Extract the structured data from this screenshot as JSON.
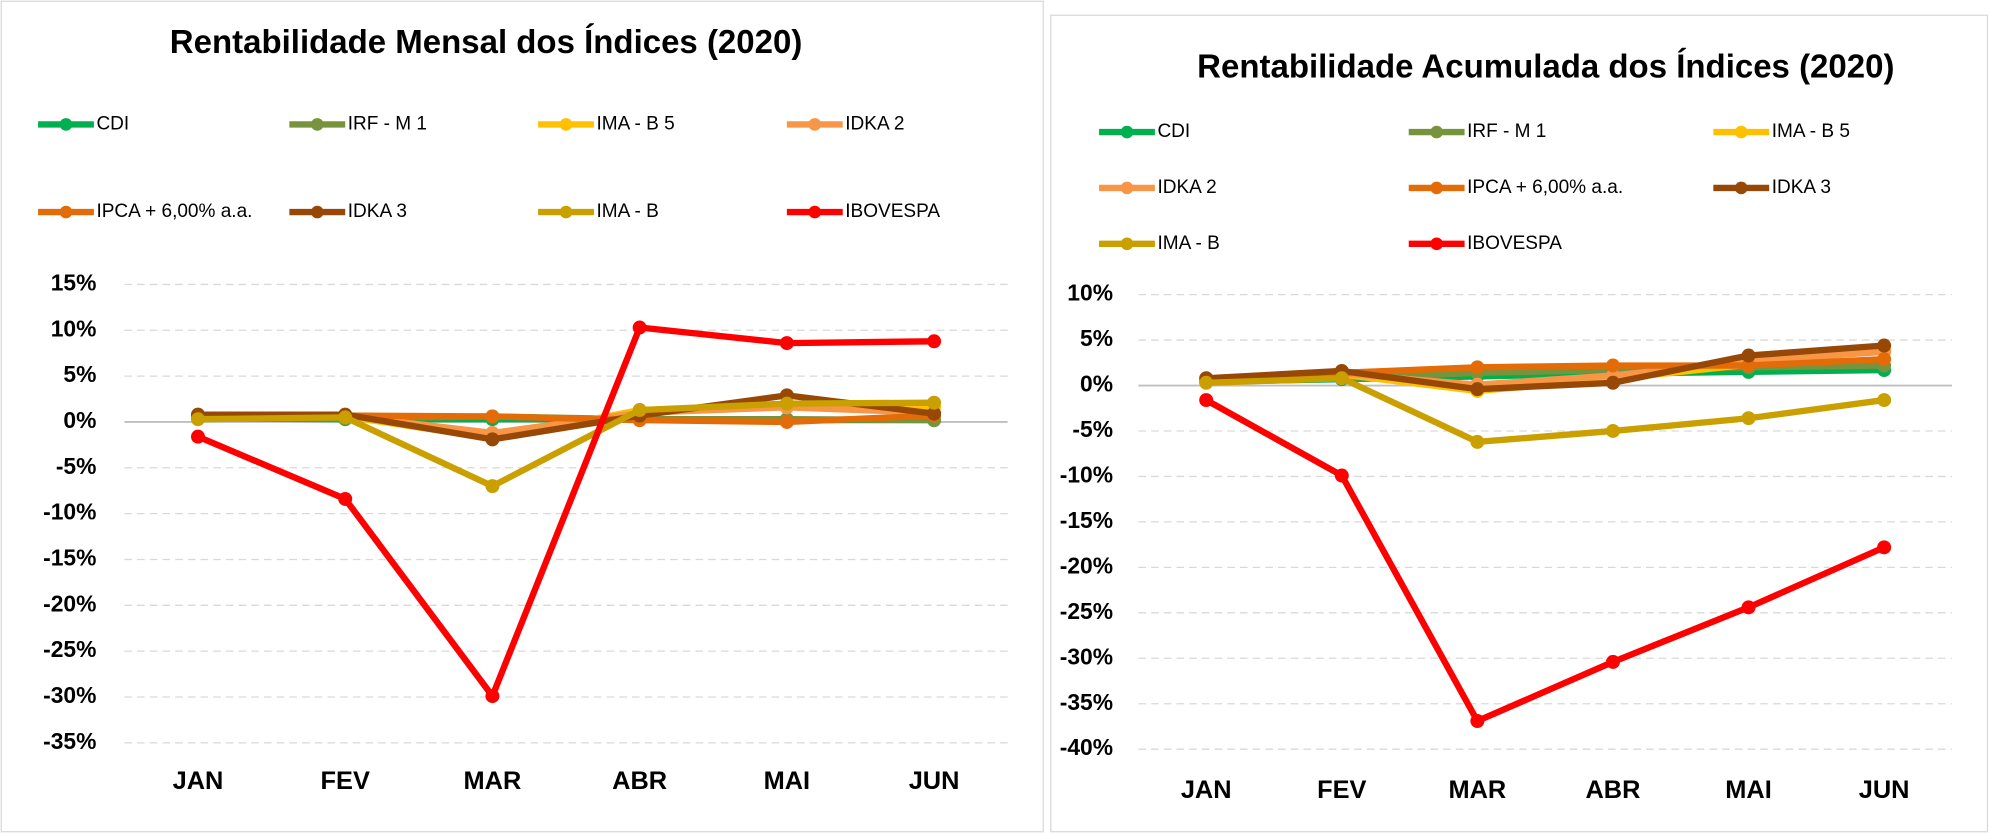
{
  "chart_data": [
    {
      "type": "line",
      "title": "Rentabilidade Mensal dos Índices (2020)",
      "categories": [
        "JAN",
        "FEV",
        "MAR",
        "ABR",
        "MAI",
        "JUN"
      ],
      "series": [
        {
          "name": "CDI",
          "color": "#00b050",
          "values": [
            0.4,
            0.3,
            0.3,
            0.3,
            0.2,
            0.2
          ]
        },
        {
          "name": "IRF - M 1",
          "color": "#77933c",
          "values": [
            0.4,
            0.4,
            0.6,
            0.3,
            0.3,
            0.2
          ]
        },
        {
          "name": "IMA - B 5",
          "color": "#ffc000",
          "values": [
            0.6,
            0.6,
            -1.8,
            1.3,
            1.6,
            1.6
          ]
        },
        {
          "name": "IDKA 2",
          "color": "#f79646",
          "values": [
            0.6,
            0.7,
            -1.2,
            1.0,
            1.6,
            1.0
          ]
        },
        {
          "name": "IPCA + 6,00% a.a.",
          "color": "#e36c09",
          "values": [
            0.7,
            0.7,
            0.6,
            0.2,
            0.0,
            0.7
          ]
        },
        {
          "name": "IDKA 3",
          "color": "#974806",
          "values": [
            0.8,
            0.8,
            -1.9,
            0.7,
            2.9,
            0.9
          ]
        },
        {
          "name": "IMA - B",
          "color": "#c9a000",
          "values": [
            0.3,
            0.5,
            -7.0,
            1.3,
            2.0,
            2.1
          ]
        },
        {
          "name": "IBOVESPA",
          "color": "#ff0000",
          "values": [
            -1.6,
            -8.4,
            -29.9,
            10.3,
            8.6,
            8.8
          ]
        }
      ],
      "ylim": [
        -35,
        15
      ],
      "yticks": [
        {
          "value": -35,
          "label": "-35%"
        },
        {
          "value": -30,
          "label": "-30%"
        },
        {
          "value": -25,
          "label": "-25%"
        },
        {
          "value": -20,
          "label": "-20%"
        },
        {
          "value": -15,
          "label": "-15%"
        },
        {
          "value": -10,
          "label": "-10%"
        },
        {
          "value": -5,
          "label": "-5%"
        },
        {
          "value": 0,
          "label": "0%"
        },
        {
          "value": 5,
          "label": "5%"
        },
        {
          "value": 10,
          "label": "10%"
        },
        {
          "value": 15,
          "label": "15%"
        }
      ],
      "grid": true
    },
    {
      "type": "line",
      "title": "Rentabilidade Acumulada dos Índices (2020)",
      "categories": [
        "JAN",
        "FEV",
        "MAR",
        "ABR",
        "MAI",
        "JUN"
      ],
      "series": [
        {
          "name": "CDI",
          "color": "#00b050",
          "values": [
            0.4,
            0.7,
            1.0,
            1.3,
            1.5,
            1.7
          ]
        },
        {
          "name": "IRF - M 1",
          "color": "#77933c",
          "values": [
            0.4,
            0.8,
            1.4,
            1.7,
            2.0,
            2.2
          ]
        },
        {
          "name": "IMA - B 5",
          "color": "#ffc000",
          "values": [
            0.6,
            1.2,
            -0.6,
            0.7,
            2.3,
            3.9
          ]
        },
        {
          "name": "IDKA 2",
          "color": "#f79646",
          "values": [
            0.6,
            1.3,
            0.1,
            1.1,
            2.7,
            3.7
          ]
        },
        {
          "name": "IPCA + 6,00% a.a.",
          "color": "#e36c09",
          "values": [
            0.7,
            1.4,
            2.0,
            2.2,
            2.2,
            2.9
          ]
        },
        {
          "name": "IDKA 3",
          "color": "#974806",
          "values": [
            0.8,
            1.6,
            -0.4,
            0.3,
            3.3,
            4.4
          ]
        },
        {
          "name": "IMA - B",
          "color": "#c9a000",
          "values": [
            0.3,
            0.8,
            -6.2,
            -5.0,
            -3.6,
            -1.6
          ]
        },
        {
          "name": "IBOVESPA",
          "color": "#ff0000",
          "values": [
            -1.6,
            -9.9,
            -36.9,
            -30.4,
            -24.4,
            -17.8
          ]
        }
      ],
      "ylim": [
        -40,
        10
      ],
      "yticks": [
        {
          "value": -40,
          "label": "-40%"
        },
        {
          "value": -35,
          "label": "-35%"
        },
        {
          "value": -30,
          "label": "-30%"
        },
        {
          "value": -25,
          "label": "-25%"
        },
        {
          "value": -20,
          "label": "-20%"
        },
        {
          "value": -15,
          "label": "-15%"
        },
        {
          "value": -10,
          "label": "-10%"
        },
        {
          "value": -5,
          "label": "-5%"
        },
        {
          "value": 0,
          "label": "0%"
        },
        {
          "value": 5,
          "label": "5%"
        },
        {
          "value": 10,
          "label": "10%"
        }
      ],
      "grid": true
    }
  ]
}
